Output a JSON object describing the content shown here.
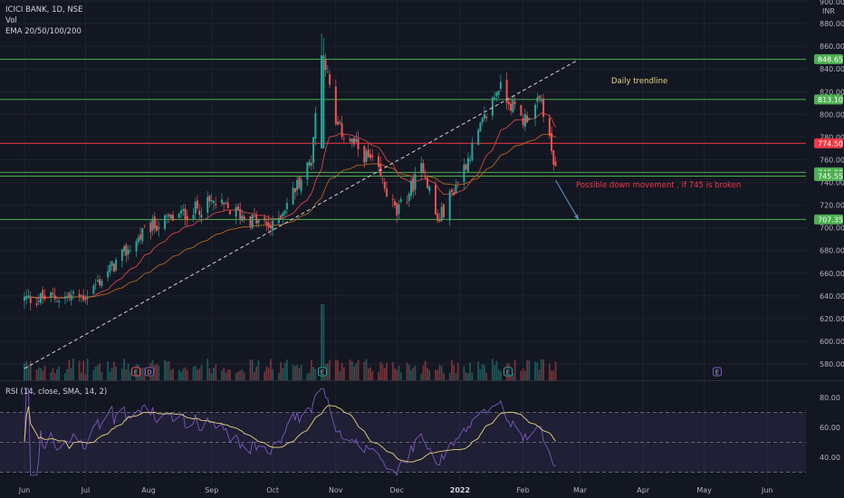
{
  "legend": {
    "symbol": "ICICI BANK, 1D, NSE",
    "volume": "Vol",
    "ema": "EMA 20/50/100/200",
    "rsi": "RSI (14, close, SMA, 14, 2)"
  },
  "currency": "INR",
  "colors": {
    "background": "#131722",
    "up": "#26a69a",
    "down": "#ef5350",
    "green_level": "#4caf50",
    "red_level": "#f23645",
    "trendline": "#d1d4dc",
    "ema_short": "#d64545",
    "ema_long": "#b5651d",
    "rsi_line": "#7e57c2",
    "rsi_ma": "#e8d37a"
  },
  "chart_data": {
    "type": "candlestick",
    "price_axis": {
      "ticks": [
        580,
        600,
        620,
        640,
        660,
        680,
        700,
        720,
        740,
        760,
        780,
        800,
        820,
        840,
        860,
        880,
        900
      ],
      "top_label": "900.00",
      "range": [
        575,
        905
      ]
    },
    "rsi_axis": {
      "ticks": [
        40,
        60,
        80
      ],
      "bands": [
        30,
        50,
        70
      ],
      "range": [
        25,
        87
      ]
    },
    "time_axis": {
      "labels": [
        "Jun",
        "Jul",
        "Aug",
        "Sep",
        "Oct",
        "Nov",
        "Dec",
        "2022",
        "Feb",
        "Mar",
        "Apr",
        "May",
        "Jun"
      ]
    },
    "levels": [
      {
        "value": 848.65,
        "label": "848.65",
        "color": "#4caf50"
      },
      {
        "value": 813.1,
        "label": "813.10",
        "color": "#4caf50"
      },
      {
        "value": 774.5,
        "label": "774.50",
        "color": "#f23645"
      },
      {
        "value": 748.9,
        "label": "748.90",
        "color": "#4caf50"
      },
      {
        "value": 745.55,
        "label": "745.55",
        "color": "#4caf50"
      },
      {
        "value": 707.35,
        "label": "707.35",
        "color": "#4caf50"
      }
    ],
    "trendline": {
      "from": {
        "date": "2021-06-01",
        "price": 576
      },
      "to": {
        "date": "2022-02-28",
        "price": 848
      }
    },
    "projection": {
      "from": {
        "date": "2022-02-17",
        "price": 742
      },
      "to": {
        "date": "2022-02-28",
        "price": 708
      }
    },
    "annotations": [
      {
        "text": "Daily trendline",
        "color": "#e8d37a"
      },
      {
        "text": "Possible down movement , if 745 is broken",
        "color": "#f23645"
      }
    ],
    "event_markers": [
      "E",
      "D",
      "E",
      "E",
      "E"
    ],
    "key_prices": [
      {
        "date": "2021-06-01",
        "close": 637
      },
      {
        "date": "2021-07-01",
        "close": 640
      },
      {
        "date": "2021-08-01",
        "close": 700
      },
      {
        "date": "2021-09-01",
        "close": 722
      },
      {
        "date": "2021-10-01",
        "close": 700
      },
      {
        "date": "2021-10-20",
        "close": 760
      },
      {
        "date": "2021-10-25",
        "close": 865
      },
      {
        "date": "2021-11-01",
        "close": 790
      },
      {
        "date": "2021-11-20",
        "close": 755
      },
      {
        "date": "2021-12-01",
        "close": 712
      },
      {
        "date": "2021-12-14",
        "close": 755
      },
      {
        "date": "2021-12-21",
        "close": 705
      },
      {
        "date": "2022-01-01",
        "close": 745
      },
      {
        "date": "2022-01-20",
        "close": 825
      },
      {
        "date": "2022-02-01",
        "close": 795
      },
      {
        "date": "2022-02-10",
        "close": 812
      },
      {
        "date": "2022-02-17",
        "close": 748
      }
    ]
  }
}
